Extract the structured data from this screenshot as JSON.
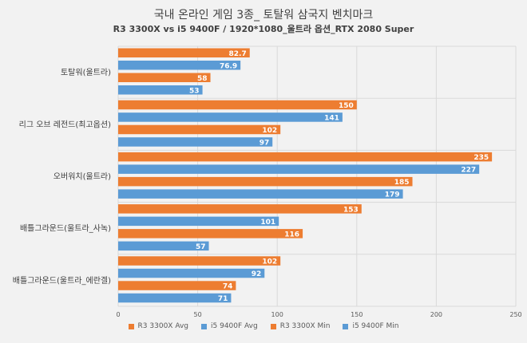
{
  "chart_data": {
    "type": "bar",
    "orientation": "horizontal",
    "title": "국내 온라인 게임 3종_ 토탈워 삼국지 벤치마크",
    "subtitle": "R3 3300X vs i5 9400F / 1920*1080_울트라 옵션_RTX 2080 Super",
    "categories": [
      "토탈워(울트라)",
      "리그 오브 레전드(최고옵션)",
      "오버워치(울트라)",
      "배틀그라운드(울트라_사녹)",
      "배틀그라운드(울트라_에란겔)"
    ],
    "series": [
      {
        "name": "R3 3300X Avg",
        "color": "#ed7d31",
        "values": [
          82.7,
          150,
          235,
          153,
          102
        ]
      },
      {
        "name": "i5 9400F Avg",
        "color": "#5b9bd5",
        "values": [
          76.9,
          141,
          227,
          101,
          92
        ]
      },
      {
        "name": "R3 3300X Min",
        "color": "#ed7d31",
        "values": [
          58,
          102,
          185,
          116,
          74
        ]
      },
      {
        "name": "i5 9400F Min",
        "color": "#5b9bd5",
        "values": [
          53,
          97,
          179,
          57,
          71
        ]
      }
    ],
    "value_labels": [
      [
        "82.7",
        "150",
        "235",
        "153",
        "102"
      ],
      [
        "76.9",
        "141",
        "227",
        "101",
        "92"
      ],
      [
        "58",
        "102",
        "185",
        "116",
        "74"
      ],
      [
        "53",
        "97",
        "179",
        "57",
        "71"
      ]
    ],
    "xlim": [
      0,
      250
    ],
    "xticks": [
      "0",
      "50",
      "100",
      "150",
      "200",
      "250"
    ],
    "grid": true,
    "legend_position": "bottom"
  }
}
